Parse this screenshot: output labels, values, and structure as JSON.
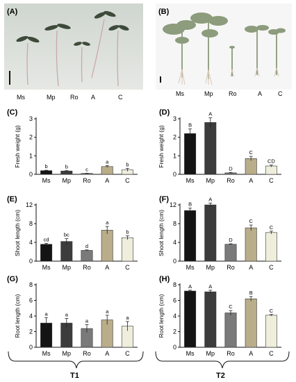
{
  "figure": {
    "photo_a": {
      "label": "(A)",
      "plant_labels": [
        "Ms",
        "Mp",
        "Ro",
        "A",
        "C"
      ]
    },
    "photo_b": {
      "label": "(B)",
      "plant_labels": [
        "Ms",
        "Mp",
        "Ro",
        "A",
        "C"
      ]
    },
    "groups": [
      "T1",
      "T2"
    ]
  },
  "colors": {
    "Ms": "#141414",
    "Mp": "#3c3c3c",
    "Ro": "#7a7a7a",
    "A": "#b9ad8a",
    "C": "#efeedd"
  },
  "chart_data": [
    {
      "id": "C",
      "panel_label": "(C)",
      "type": "bar",
      "categories": [
        "Ms",
        "Mp",
        "Ro",
        "A",
        "C"
      ],
      "values": [
        0.2,
        0.18,
        0.05,
        0.42,
        0.24
      ],
      "errors": [
        0.02,
        0.02,
        0.01,
        0.05,
        0.08
      ],
      "letters": [
        "b",
        "b",
        "c",
        "a",
        "b"
      ],
      "ylabel": "Fresh weight (g)",
      "ylim": [
        0,
        3
      ],
      "yticks": [
        0,
        1,
        2,
        3
      ]
    },
    {
      "id": "D",
      "panel_label": "(D)",
      "type": "bar",
      "categories": [
        "Ms",
        "Mp",
        "Ro",
        "A",
        "C"
      ],
      "values": [
        2.2,
        2.8,
        0.08,
        0.85,
        0.45
      ],
      "errors": [
        0.25,
        0.25,
        0.02,
        0.12,
        0.05
      ],
      "letters": [
        "B",
        "A",
        "D",
        "C",
        "CD"
      ],
      "ylabel": "Fresh weight (g)",
      "ylim": [
        0,
        3
      ],
      "yticks": [
        0,
        1,
        2,
        3
      ]
    },
    {
      "id": "E",
      "panel_label": "(E)",
      "type": "bar",
      "categories": [
        "Ms",
        "Mp",
        "Ro",
        "A",
        "C"
      ],
      "values": [
        3.6,
        4.2,
        2.3,
        6.6,
        5.0
      ],
      "errors": [
        0.2,
        0.6,
        0.1,
        0.8,
        0.4
      ],
      "letters": [
        "cd",
        "bc",
        "d",
        "a",
        "b"
      ],
      "ylabel": "Shoot length (cm)",
      "ylim": [
        0,
        12
      ],
      "yticks": [
        0,
        4,
        8,
        12
      ]
    },
    {
      "id": "F",
      "panel_label": "(F)",
      "type": "bar",
      "categories": [
        "Ms",
        "Mp",
        "Ro",
        "A",
        "C"
      ],
      "values": [
        10.8,
        12.0,
        3.6,
        7.1,
        6.1
      ],
      "errors": [
        0.5,
        0.4,
        0.1,
        0.6,
        0.3
      ],
      "letters": [
        "B",
        "A",
        "D",
        "C",
        "C"
      ],
      "ylabel": "Shoot length (cm)",
      "ylim": [
        0,
        12
      ],
      "yticks": [
        0,
        4,
        8,
        12
      ]
    },
    {
      "id": "G",
      "panel_label": "(G)",
      "type": "bar",
      "categories": [
        "Ms",
        "Mp",
        "Ro",
        "A",
        "C"
      ],
      "values": [
        3.1,
        3.1,
        2.4,
        3.5,
        2.7
      ],
      "errors": [
        0.7,
        0.6,
        0.5,
        0.6,
        0.6
      ],
      "letters": [
        "a",
        "a",
        "a",
        "a",
        "a"
      ],
      "ylabel": "Root length (cm)",
      "ylim": [
        0,
        8
      ],
      "yticks": [
        0,
        2,
        4,
        6,
        8
      ]
    },
    {
      "id": "H",
      "panel_label": "(H)",
      "type": "bar",
      "categories": [
        "Ms",
        "Mp",
        "Ro",
        "A",
        "C"
      ],
      "values": [
        7.2,
        7.1,
        4.4,
        6.2,
        4.1
      ],
      "errors": [
        0.1,
        0.2,
        0.3,
        0.3,
        0.1
      ],
      "letters": [
        "A",
        "A",
        "C",
        "B",
        "C"
      ],
      "ylabel": "Root length (cm)",
      "ylim": [
        0,
        8
      ],
      "yticks": [
        0,
        2,
        4,
        6,
        8
      ]
    }
  ]
}
